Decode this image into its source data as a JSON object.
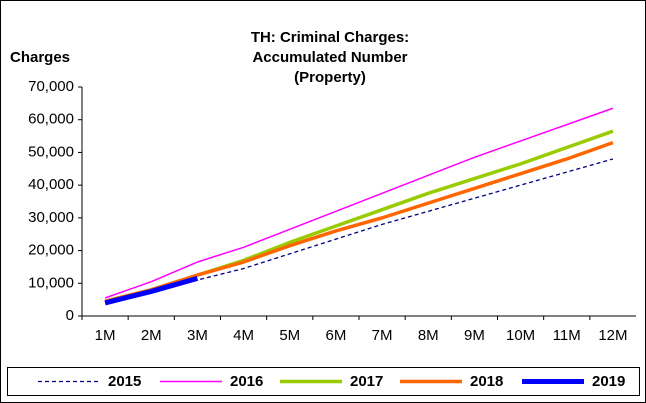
{
  "chart_data": {
    "type": "line",
    "title": [
      "TH: Criminal Charges:",
      "Accumulated Number",
      "(Property)"
    ],
    "y_label": "Charges",
    "categories": [
      "1M",
      "2M",
      "3M",
      "4M",
      "5M",
      "6M",
      "7M",
      "8M",
      "9M",
      "10M",
      "11M",
      "12M"
    ],
    "series": [
      {
        "name": "2015",
        "color": "#000080",
        "values": [
          4000,
          7000,
          11000,
          14500,
          19000,
          23500,
          28000,
          32000,
          36000,
          40000,
          44000,
          48000
        ]
      },
      {
        "name": "2016",
        "color": "#ff00ff",
        "values": [
          5500,
          10500,
          16500,
          21000,
          26500,
          32000,
          37500,
          43000,
          48500,
          53500,
          58500,
          63500
        ]
      },
      {
        "name": "2017",
        "color": "#99cc00",
        "values": [
          4500,
          8000,
          12500,
          17000,
          22500,
          27500,
          32500,
          37500,
          42000,
          46500,
          51500,
          56500
        ]
      },
      {
        "name": "2018",
        "color": "#ff6600",
        "values": [
          4500,
          8000,
          12500,
          16500,
          21500,
          26000,
          30000,
          34500,
          39000,
          43500,
          48000,
          53000
        ]
      },
      {
        "name": "2019",
        "color": "#0000ff",
        "values": [
          4000,
          7500,
          11500,
          null,
          null,
          null,
          null,
          null,
          null,
          null,
          null,
          null
        ]
      }
    ],
    "ylim": [
      0,
      70000
    ],
    "yticks": [
      0,
      {
        "value": 10000,
        "label": "10,000"
      },
      {
        "value": 20000,
        "label": "20,000"
      },
      {
        "value": 30000,
        "label": "30,000"
      },
      {
        "value": 40000,
        "label": "40,000"
      },
      {
        "value": 50000,
        "label": "50,000"
      },
      {
        "value": 60000,
        "label": "60,000"
      },
      {
        "value": 70000,
        "label": "70,000"
      }
    ],
    "legend": "bottom"
  }
}
